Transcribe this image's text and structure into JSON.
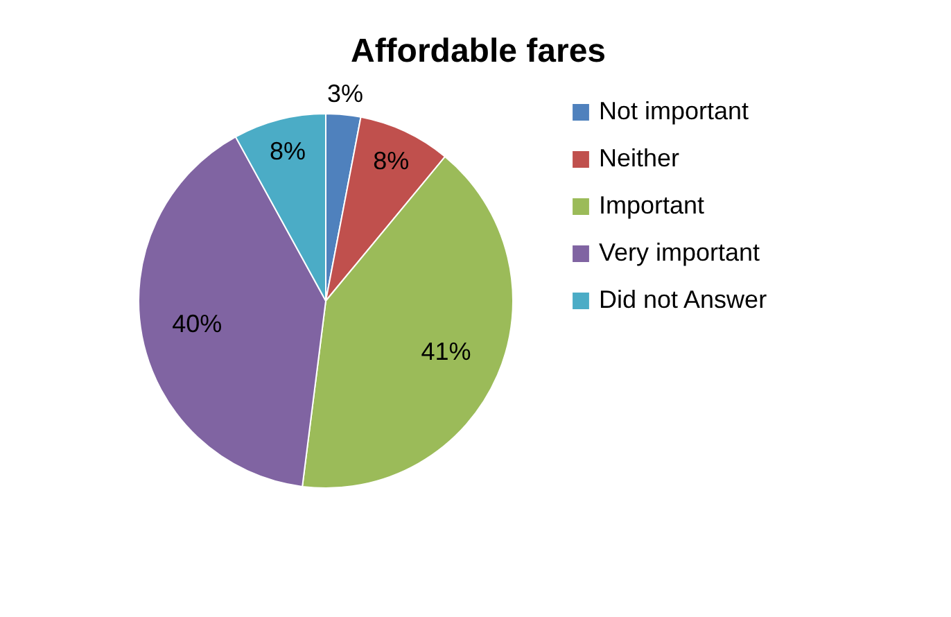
{
  "chart_data": {
    "type": "pie",
    "title": "Affordable fares",
    "categories": [
      "Not important",
      "Neither",
      "Important",
      "Very important",
      "Did not Answer"
    ],
    "values": [
      3,
      8,
      41,
      40,
      8
    ],
    "value_labels": [
      "3%",
      "8%",
      "41%",
      "40%",
      "8%"
    ],
    "colors": [
      "#4f81bd",
      "#c0504d",
      "#9bbb59",
      "#8064a2",
      "#4bacc6"
    ],
    "legend": "right"
  }
}
